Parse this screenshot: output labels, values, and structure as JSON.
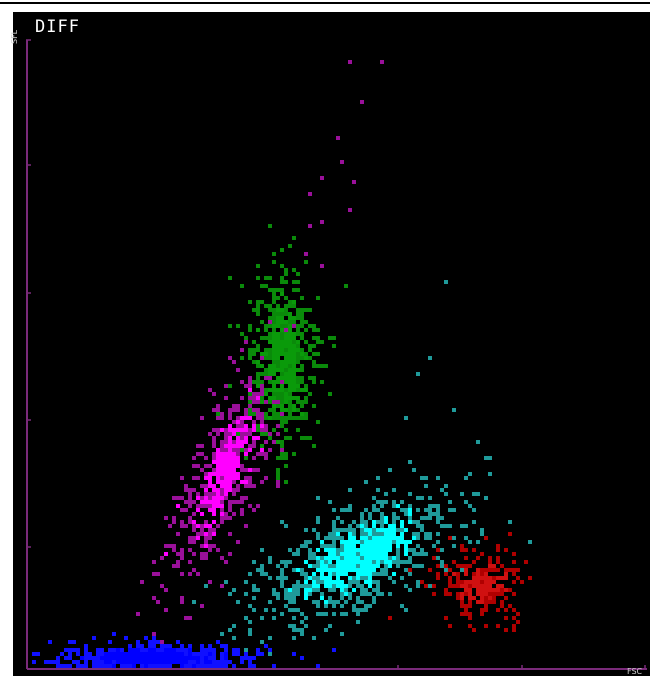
{
  "chart_data": {
    "type": "scatter",
    "title": "DIFF",
    "xlabel": "FSC",
    "ylabel": "SFL",
    "xlim": [
      0,
      100
    ],
    "ylim": [
      0,
      100
    ],
    "grid": false,
    "legend": "none",
    "axis_color": "#7a2a7a",
    "series": [
      {
        "color": "#1010ff",
        "center": [
          20,
          2
        ],
        "spread": [
          9,
          1.2
        ],
        "count": 520,
        "core_color": "#0000ff",
        "core_fraction": 0.55
      },
      {
        "color": "#9a109a",
        "center": [
          32,
          32
        ],
        "spread": [
          3.5,
          9
        ],
        "count": 520,
        "tilt": 0.55,
        "core_color": "#ff00ff",
        "core_fraction": 0.4
      },
      {
        "color": "#0a8a0a",
        "center": [
          41,
          49
        ],
        "spread": [
          3.2,
          8.5
        ],
        "count": 420,
        "core_color": "#0a9a0a",
        "core_fraction": 0.5
      },
      {
        "color": "#1f9a9a",
        "center": [
          53,
          18
        ],
        "spread": [
          8,
          5
        ],
        "count": 760,
        "tilt": 0.5,
        "core_color": "#00ffff",
        "core_fraction": 0.5
      },
      {
        "color": "#b00000",
        "center": [
          73,
          13.5
        ],
        "spread": [
          4,
          3
        ],
        "count": 190,
        "core_color": "#d01010",
        "core_fraction": 0.4
      }
    ],
    "outliers": [
      {
        "x": 51.5,
        "y": 97,
        "color": "#9a109a"
      },
      {
        "x": 57,
        "y": 97,
        "color": "#9a109a"
      },
      {
        "x": 54,
        "y": 90.5,
        "color": "#9a109a"
      },
      {
        "x": 50,
        "y": 85,
        "color": "#9a109a"
      },
      {
        "x": 50.5,
        "y": 81,
        "color": "#9a109a"
      },
      {
        "x": 47,
        "y": 78.5,
        "color": "#9a109a"
      },
      {
        "x": 52.5,
        "y": 77.5,
        "color": "#9a109a"
      },
      {
        "x": 45.5,
        "y": 75.5,
        "color": "#9a109a"
      },
      {
        "x": 52,
        "y": 73.5,
        "color": "#9a109a"
      },
      {
        "x": 47.5,
        "y": 71.5,
        "color": "#9a109a"
      },
      {
        "x": 45,
        "y": 70.5,
        "color": "#9a109a"
      },
      {
        "x": 44.5,
        "y": 66.5,
        "color": "#9a109a"
      },
      {
        "x": 47,
        "y": 64.5,
        "color": "#9a109a"
      },
      {
        "x": 67.5,
        "y": 61.5,
        "color": "#1f9a9a"
      },
      {
        "x": 64.5,
        "y": 49.5,
        "color": "#1f9a9a"
      },
      {
        "x": 62.5,
        "y": 47,
        "color": "#1f9a9a"
      },
      {
        "x": 68.5,
        "y": 41.5,
        "color": "#1f9a9a"
      },
      {
        "x": 61,
        "y": 40,
        "color": "#1f9a9a"
      },
      {
        "x": 34,
        "y": 48,
        "color": "#9a109a"
      },
      {
        "x": 58.5,
        "y": 8,
        "color": "#b00000"
      },
      {
        "x": 35.5,
        "y": 6,
        "color": "#1f9a9a"
      }
    ]
  }
}
